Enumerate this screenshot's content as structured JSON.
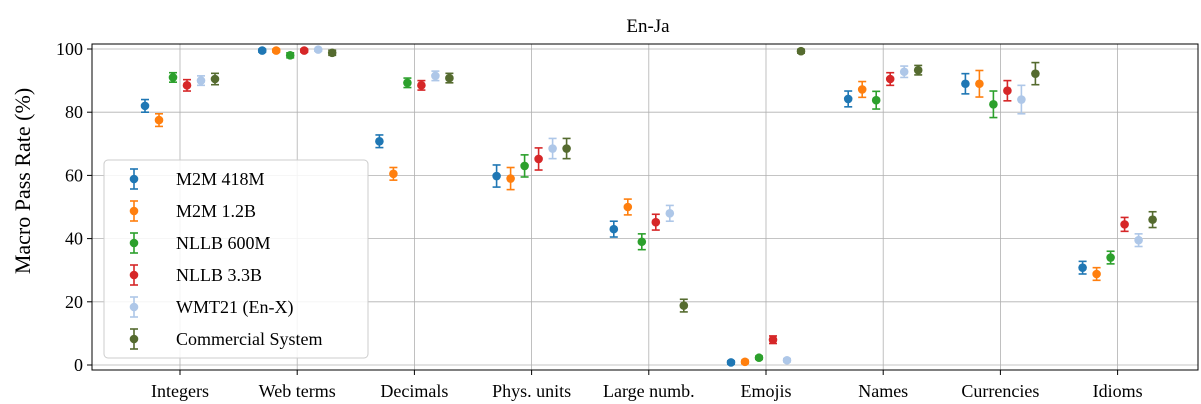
{
  "chart_data": {
    "type": "scatter",
    "title": "En-Ja",
    "xlabel": "",
    "ylabel": "Macro Pass Rate (%)",
    "ylim": [
      0,
      100
    ],
    "yticks": [
      0,
      20,
      40,
      60,
      80,
      100
    ],
    "grid": true,
    "legend_position": "bottom-left",
    "categories": [
      "Integers",
      "Web terms",
      "Decimals",
      "Phys. units",
      "Large numb.",
      "Emojis",
      "Names",
      "Currencies",
      "Idioms"
    ],
    "series": [
      {
        "name": "M2M 418M",
        "color": "#1f77b4",
        "values": [
          82,
          99.5,
          70.8,
          59.8,
          43,
          0.8,
          84.2,
          89,
          30.8
        ],
        "err": [
          2,
          0.5,
          2,
          3.5,
          2.5,
          0.5,
          2.5,
          3.2,
          2
        ]
      },
      {
        "name": "M2M 1.2B",
        "color": "#ff7f0e",
        "values": [
          77.5,
          99.5,
          60.5,
          59,
          50,
          1,
          87.2,
          89,
          28.8
        ],
        "err": [
          2,
          0.5,
          2,
          3.5,
          2.5,
          0.5,
          2.5,
          4.2,
          2
        ]
      },
      {
        "name": "NLLB 600M",
        "color": "#2ca02c",
        "values": [
          91,
          98,
          89.3,
          63,
          39,
          2.3,
          83.8,
          82.5,
          34
        ],
        "err": [
          1.5,
          0.8,
          1.5,
          3.5,
          2.5,
          0.5,
          2.8,
          4.2,
          2
        ]
      },
      {
        "name": "NLLB 3.3B",
        "color": "#d62728",
        "values": [
          88.5,
          99.5,
          88.5,
          65.2,
          45.2,
          8,
          90.5,
          86.8,
          44.5
        ],
        "err": [
          1.8,
          0.5,
          1.5,
          3.5,
          2.5,
          1.2,
          2,
          3.2,
          2.2
        ]
      },
      {
        "name": "WMT21 (En-X)",
        "color": "#aec7e8",
        "values": [
          90,
          99.8,
          91.5,
          68.5,
          48,
          1.5,
          92.8,
          84,
          39.5
        ],
        "err": [
          1.5,
          0.5,
          1.5,
          3.2,
          2.5,
          0.5,
          1.8,
          4.5,
          2
        ]
      },
      {
        "name": "Commercial System",
        "color": "#556b2f",
        "values": [
          90.5,
          98.8,
          90.8,
          68.5,
          18.8,
          99.3,
          93.3,
          92.2,
          46
        ],
        "err": [
          1.8,
          0.8,
          1.5,
          3.2,
          2,
          0.6,
          1.5,
          3.5,
          2.5
        ]
      }
    ]
  }
}
